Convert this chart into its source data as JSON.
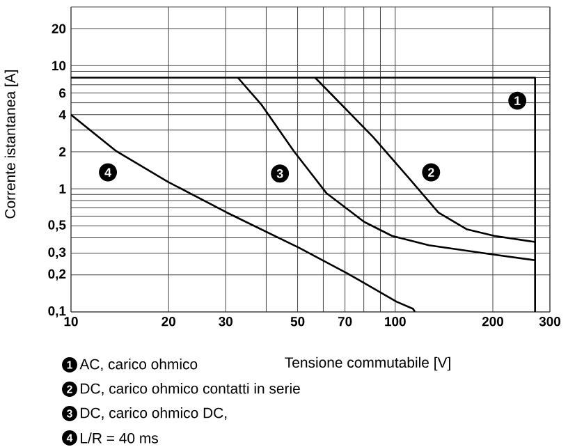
{
  "chart_data": {
    "type": "line",
    "xlabel": "Tensione commutabile [V]",
    "ylabel": "Corrente istantanea [A]",
    "log": "xy",
    "grid": true,
    "legend": "bottom",
    "marker": "none",
    "line_style": "solid",
    "xlim": [
      10,
      300
    ],
    "ylim": [
      0.1,
      30
    ],
    "xticks": [
      10,
      20,
      30,
      {
        "value": 40,
        "label": null
      },
      50,
      {
        "value": 60,
        "label": null
      },
      70,
      {
        "value": 80,
        "label": null
      },
      {
        "value": 90,
        "label": null
      },
      100,
      200,
      300
    ],
    "yticks": [
      {
        "value": 0.1,
        "label": "0,1"
      },
      {
        "value": 0.2,
        "label": "0,2"
      },
      {
        "value": 0.3,
        "label": "0,3"
      },
      {
        "value": 0.4,
        "label": null
      },
      {
        "value": 0.5,
        "label": "0,5"
      },
      {
        "value": 0.6,
        "label": null
      },
      {
        "value": 0.7,
        "label": null
      },
      {
        "value": 0.8,
        "label": null
      },
      {
        "value": 0.9,
        "label": null
      },
      1,
      2,
      {
        "value": 3,
        "label": null
      },
      4,
      {
        "value": 5,
        "label": null
      },
      6,
      {
        "value": 7,
        "label": null
      },
      {
        "value": 8,
        "label": null
      },
      {
        "value": 9,
        "label": null
      },
      10,
      20
    ],
    "series": [
      {
        "name": "AC, carico ohmico",
        "color": "#000000",
        "x": [
          10,
          270,
          270
        ],
        "values": [
          8,
          8,
          0.1
        ]
      },
      {
        "name": "DC, carico ohmico contatti in serie",
        "color": "#000000",
        "x": [
          56.6,
          85.5,
          108,
          136,
          166,
          202,
          270
        ],
        "values": [
          8,
          2.63,
          1.3,
          0.64,
          0.47,
          0.415,
          0.37
        ]
      },
      {
        "name": "DC, carico ohmico DC,",
        "color": "#000000",
        "x": [
          32.7,
          38.6,
          48.7,
          61.4,
          80.1,
          97.7,
          127,
          202,
          270
        ],
        "values": [
          8,
          4.86,
          2.02,
          0.92,
          0.54,
          0.415,
          0.348,
          0.292,
          0.263
        ]
      },
      {
        "name": "L/R = 40 ms",
        "color": "#000000",
        "x": [
          10,
          13.8,
          19.9,
          30.3,
          50.4,
          71.3,
          101,
          113.5,
          115
        ],
        "values": [
          4,
          2.02,
          1.14,
          0.64,
          0.333,
          0.205,
          0.121,
          0.106,
          0.1
        ]
      }
    ],
    "annotations": [
      {
        "text": "1",
        "x": 238,
        "y": 5.2
      },
      {
        "text": "2",
        "x": 129,
        "y": 1.36
      },
      {
        "text": "3",
        "x": 44.1,
        "y": 1.33
      },
      {
        "text": "4",
        "x": 13,
        "y": 1.36
      }
    ]
  }
}
